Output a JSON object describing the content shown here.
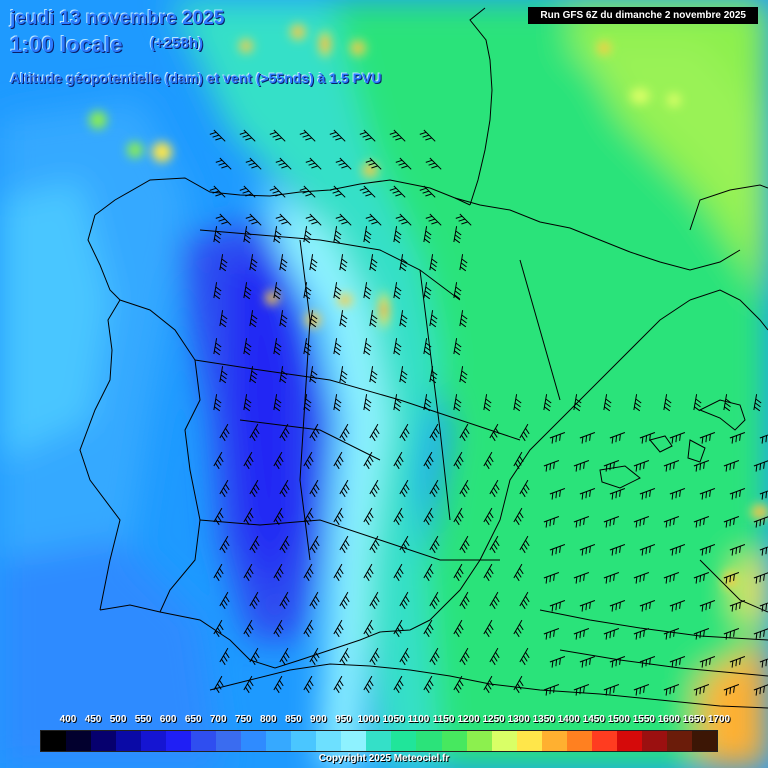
{
  "header": {
    "date_line": "jeudi 13 novembre 2025",
    "time_line": "1:00 locale",
    "lead_time": "(+258h)",
    "field_line": "Altitude géopotentielle (dam) et vent (>55nds) à 1.5 PVU",
    "run_label": "Run GFS 6Z du dimanche 2 novembre 2025"
  },
  "scale": {
    "labels": [
      "400",
      "450",
      "500",
      "550",
      "600",
      "650",
      "700",
      "750",
      "800",
      "850",
      "900",
      "950",
      "1000",
      "1050",
      "1100",
      "1150",
      "1200",
      "1250",
      "1300",
      "1350",
      "1400",
      "1450",
      "1500",
      "1550",
      "1600",
      "1650",
      "1700"
    ],
    "colors": [
      "#000000",
      "#02002e",
      "#06006e",
      "#0a0aa6",
      "#1515d2",
      "#1f1ff5",
      "#2f4ef0",
      "#3a6cf0",
      "#2f8bff",
      "#36a9ff",
      "#4ac6ff",
      "#6de0ff",
      "#8ef2ff",
      "#34e0c8",
      "#20e59a",
      "#2be37a",
      "#47e85f",
      "#8cf04e",
      "#d9ff66",
      "#ffe64a",
      "#ffb030",
      "#ff8020",
      "#ff3c20",
      "#d50a0a",
      "#9b1010",
      "#6b1c0a",
      "#3c1605"
    ]
  },
  "copyright": "Copyright 2025 Meteociel.fr"
}
